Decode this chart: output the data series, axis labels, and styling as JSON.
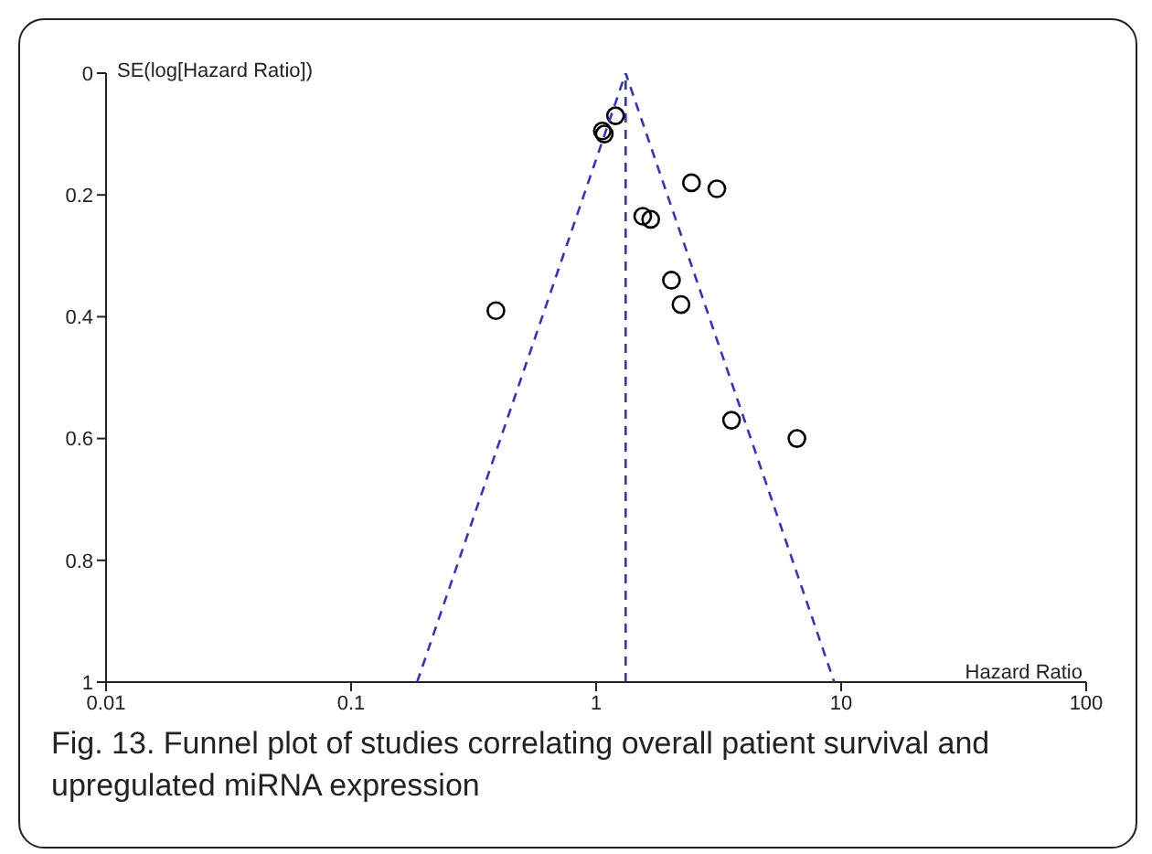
{
  "chart_data": {
    "type": "scatter",
    "xlabel": "Hazard Ratio",
    "ylabel": "SE(log[Hazard Ratio])",
    "annotations": [
      "Fig. 13.  Funnel plot of studies correlating overall patient survival and upregulated miRNA expression"
    ],
    "log": "x",
    "xlim": [
      0.01,
      100
    ],
    "xticks": [
      0.01,
      0.1,
      1,
      10,
      100
    ],
    "ylim": [
      1,
      0
    ],
    "yticks": [
      0,
      0.2,
      0.4,
      0.6,
      0.8,
      1
    ],
    "marker": "circle",
    "series": [
      {
        "color": "#000000",
        "x": [
          1.2,
          1.06,
          1.08,
          2.45,
          3.11,
          1.55,
          1.67,
          2.03,
          2.22,
          0.39,
          3.57,
          6.6
        ],
        "values": [
          0.07,
          0.095,
          0.1,
          0.18,
          0.19,
          0.235,
          0.24,
          0.34,
          0.38,
          0.39,
          0.57,
          0.6
        ]
      },
      {
        "type": "line",
        "color": "#3333cc",
        "line_style": "dashed",
        "marker": "none",
        "x": [
          0.186,
          1.32,
          9.37
        ],
        "values": [
          1,
          0,
          1
        ]
      }
    ],
    "ref_lines": [
      {
        "axis": "x",
        "value": 1.32,
        "color": "#3333cc",
        "line_style": "dashed"
      }
    ]
  }
}
